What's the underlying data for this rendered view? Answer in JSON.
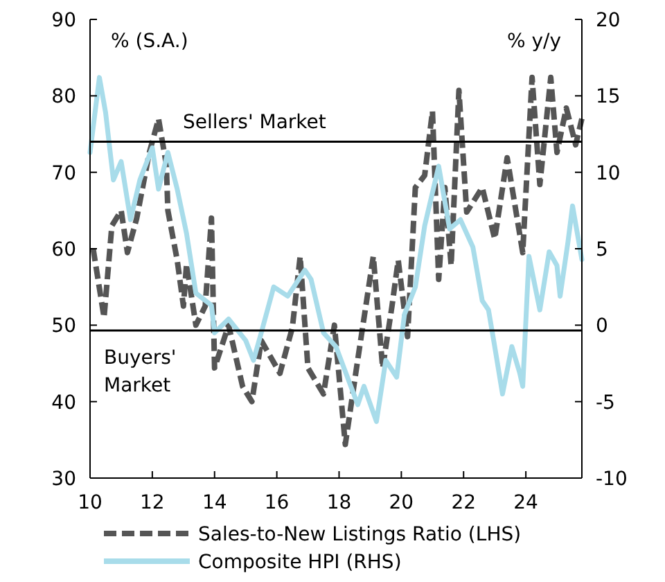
{
  "chart_data": {
    "type": "line",
    "ylabel": "% (S.A.)",
    "y2label": "% y/y",
    "xlim": [
      10,
      25.8
    ],
    "xticks": [
      10,
      12,
      14,
      16,
      18,
      20,
      22,
      24
    ],
    "ylim": [
      30,
      90
    ],
    "yticks": [
      30,
      40,
      50,
      60,
      70,
      80,
      90
    ],
    "y2lim": [
      -10,
      20
    ],
    "y2ticks": [
      -10,
      -5,
      0,
      5,
      10,
      15,
      20
    ],
    "grid": false,
    "legend": "bottom",
    "ref_lines": [
      {
        "axis": "y",
        "value": 74,
        "label": "Sellers' Market",
        "color": "#000000"
      },
      {
        "axis": "y",
        "value": 49.3,
        "label": "Buyers'\nMarket",
        "color": "#000000"
      }
    ],
    "series": [
      {
        "name": "Sales-to-New Listings Ratio (LHS)",
        "color": "#555555",
        "line_style": "dashed",
        "axis": "y",
        "x": [
          10.1,
          10.45,
          10.7,
          11.0,
          11.2,
          11.5,
          11.9,
          12.2,
          12.45,
          12.5,
          12.8,
          13.0,
          13.1,
          13.4,
          13.7,
          13.9,
          14.0,
          14.45,
          14.9,
          15.2,
          15.5,
          16.1,
          16.5,
          16.75,
          17.0,
          17.5,
          17.85,
          18.2,
          18.6,
          19.1,
          19.4,
          19.7,
          19.9,
          20.2,
          20.45,
          20.75,
          21.0,
          21.2,
          21.4,
          21.6,
          21.85,
          22.1,
          22.6,
          23.0,
          23.2,
          23.4,
          23.9,
          24.2,
          24.45,
          24.8,
          25.0,
          25.3,
          25.6,
          25.8
        ],
        "values": [
          60,
          51,
          63,
          65,
          59.5,
          64,
          72.5,
          77,
          71,
          65,
          58.5,
          52.5,
          58,
          50,
          52.5,
          64,
          44.4,
          50,
          42,
          40,
          48,
          43.7,
          49.7,
          59,
          44.4,
          41,
          50,
          34.4,
          45.5,
          59,
          44.4,
          52.5,
          58.5,
          48.5,
          68,
          69.6,
          78,
          56,
          68,
          57.8,
          80.7,
          64.8,
          68,
          61.3,
          66.6,
          71.9,
          59.5,
          82.4,
          68.4,
          82.4,
          72.6,
          78.4,
          73.6,
          77
        ]
      },
      {
        "name": "Composite HPI (RHS)",
        "color": "#a8dcea",
        "line_style": "solid",
        "axis": "y2",
        "x": [
          10.0,
          10.3,
          10.5,
          10.75,
          11.0,
          11.3,
          11.6,
          12.0,
          12.2,
          12.5,
          12.8,
          13.1,
          13.4,
          13.9,
          14.0,
          14.45,
          15.0,
          15.25,
          15.5,
          15.9,
          16.35,
          16.9,
          17.1,
          17.5,
          17.9,
          18.6,
          18.8,
          19.2,
          19.5,
          19.85,
          20.1,
          20.45,
          20.75,
          21.2,
          21.55,
          21.9,
          22.3,
          22.6,
          22.8,
          23.0,
          23.25,
          23.55,
          23.8,
          23.9,
          24.1,
          24.45,
          24.75,
          25.0,
          25.1,
          25.35,
          25.5,
          25.8
        ],
        "values": [
          11.3,
          16.2,
          13.9,
          9.5,
          10.7,
          6.9,
          9.5,
          11.6,
          8.9,
          11.3,
          8.9,
          6.0,
          2.1,
          1.3,
          -0.5,
          0.4,
          -1.0,
          -2.3,
          -0.5,
          2.5,
          1.9,
          3.6,
          3.0,
          -0.5,
          -1.4,
          -5.2,
          -4.0,
          -6.3,
          -2.3,
          -3.4,
          0.7,
          2.5,
          6.5,
          10.4,
          6.3,
          6.9,
          5.1,
          1.6,
          1.0,
          -1.4,
          -4.5,
          -1.4,
          -3.1,
          -4.0,
          4.5,
          1.0,
          4.8,
          3.9,
          1.9,
          5.4,
          7.8,
          4.3
        ]
      }
    ]
  }
}
